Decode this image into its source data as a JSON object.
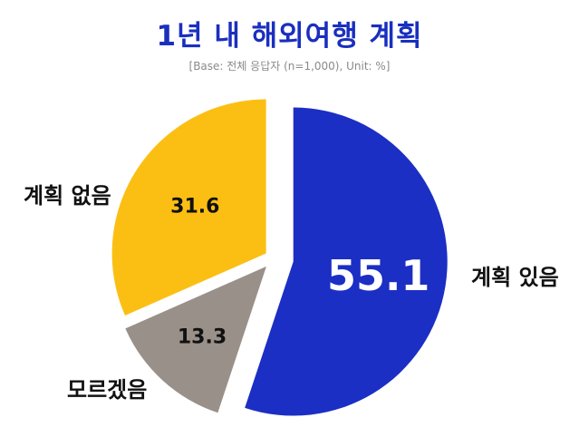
{
  "title": "1년 내 해외여행 계획",
  "subtitle": "[Base: 전체 응답자 (n=1,000), Unit: %]",
  "chart_data": {
    "type": "pie",
    "title": "1년 내 해외여행 계획",
    "subtitle": "[Base: 전체 응답자 (n=1,000), Unit: %]",
    "unit": "%",
    "slices": [
      {
        "label": "계획 있음",
        "value": 55.1,
        "color": "#1b2fc4",
        "value_color": "#ffffff"
      },
      {
        "label": "모르겠음",
        "value": 13.3,
        "color": "#989089",
        "value_color": "#111111"
      },
      {
        "label": "계획 없음",
        "value": 31.6,
        "color": "#fbbf14",
        "value_color": "#111111"
      }
    ],
    "start_angle": "12 o'clock, clockwise",
    "exploded": [
      "계획 있음"
    ]
  }
}
